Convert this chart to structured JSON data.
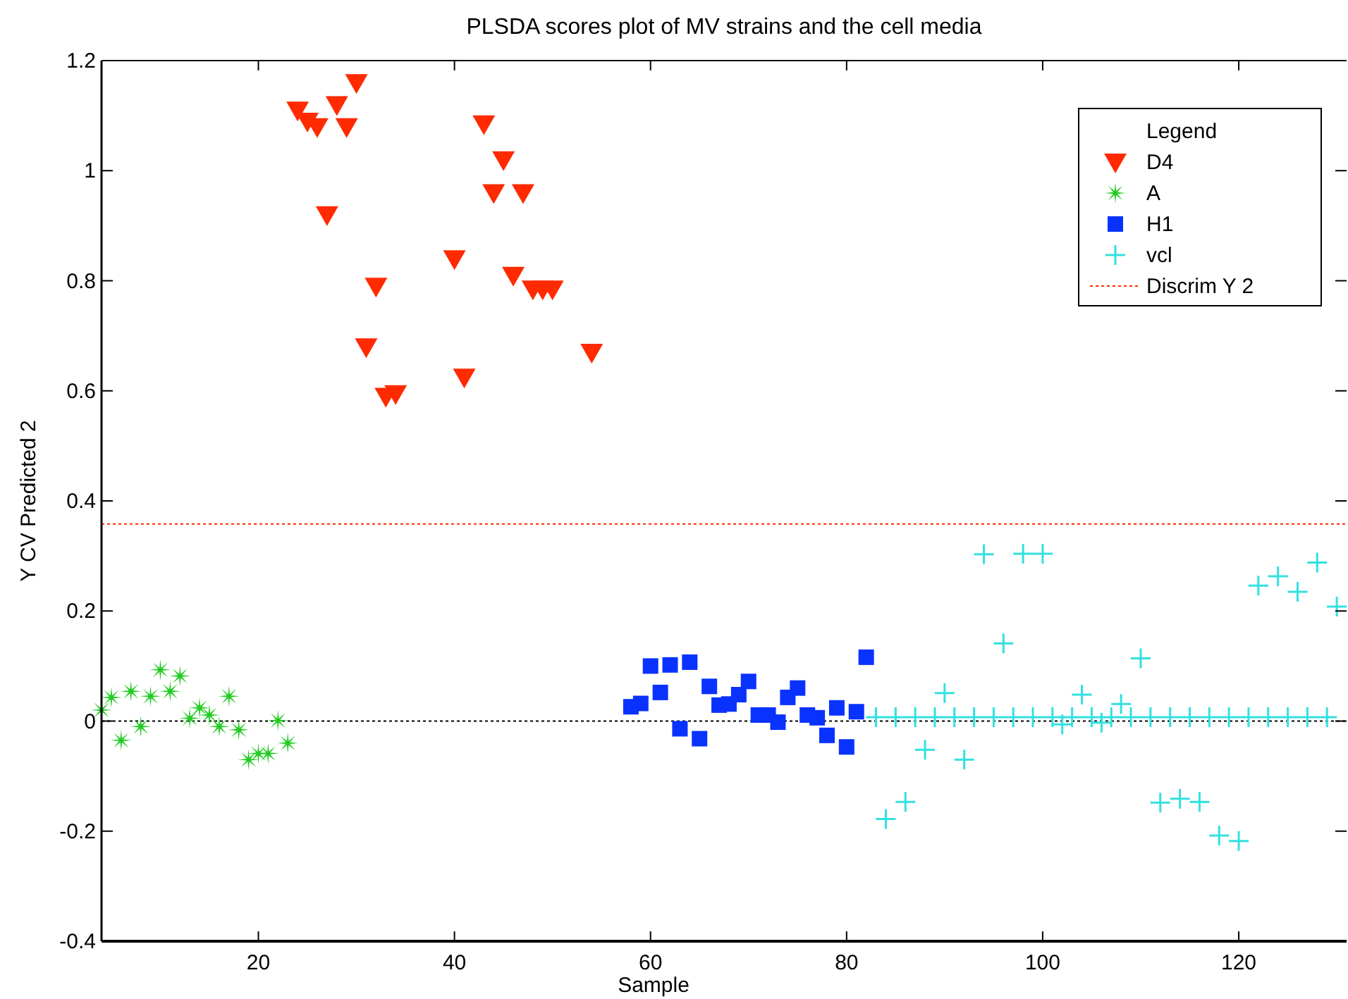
{
  "chart_data": {
    "type": "scatter",
    "title": "PLSDA scores plot of MV strains and the cell media",
    "xlabel": "Sample",
    "ylabel": "Y CV Predicted 2",
    "legend_title": "Legend",
    "legend": "top right",
    "grid": false,
    "xlim": [
      4,
      131
    ],
    "xticks": [
      20,
      40,
      60,
      80,
      100,
      120
    ],
    "ylim": [
      -0.4,
      1.2
    ],
    "yticks": [
      -0.4,
      -0.2,
      0,
      0.2,
      0.4,
      0.6,
      0.8,
      1,
      1.2
    ],
    "series": [
      {
        "name": "D4",
        "color": "#ff2a00",
        "marker": "triangle",
        "x": [
          24,
          25,
          26,
          27,
          28,
          29,
          30,
          31,
          32,
          33,
          34,
          40,
          41,
          43,
          44,
          45,
          46,
          47,
          48,
          49,
          50,
          54
        ],
        "values": [
          1.11,
          1.09,
          1.08,
          0.92,
          1.12,
          1.08,
          1.16,
          0.68,
          0.79,
          0.59,
          0.595,
          0.84,
          0.625,
          1.085,
          0.96,
          1.02,
          0.81,
          0.96,
          0.785,
          0.785,
          0.785,
          0.67
        ]
      },
      {
        "name": "A",
        "color": "#22cc22",
        "marker": "star",
        "x": [
          4,
          5,
          6,
          7,
          8,
          9,
          10,
          11,
          12,
          13,
          14,
          15,
          16,
          17,
          18,
          19,
          20,
          21,
          22,
          23
        ],
        "values": [
          0.02,
          0.043,
          -0.035,
          0.054,
          -0.01,
          0.045,
          0.093,
          0.054,
          0.082,
          0.005,
          0.024,
          0.011,
          -0.01,
          0.045,
          -0.016,
          -0.07,
          -0.059,
          -0.059,
          0.001,
          -0.04
        ]
      },
      {
        "name": "H1",
        "color": "#0a32ff",
        "marker": "square",
        "x": [
          58,
          59,
          60,
          61,
          62,
          63,
          64,
          65,
          66,
          67,
          68,
          69,
          70,
          71,
          72,
          73,
          74,
          75,
          76,
          77,
          78,
          79,
          80,
          81,
          82
        ],
        "values": [
          0.026,
          0.032,
          0.1,
          0.052,
          0.102,
          -0.014,
          0.107,
          -0.032,
          0.063,
          0.029,
          0.031,
          0.048,
          0.072,
          0.011,
          0.011,
          -0.002,
          0.043,
          0.06,
          0.011,
          0.006,
          -0.026,
          0.024,
          -0.047,
          0.017,
          0.116
        ]
      },
      {
        "name": "vcl",
        "color": "#33e0e0",
        "marker": "cross",
        "x": [
          83,
          84,
          85,
          86,
          87,
          88,
          89,
          90,
          91,
          92,
          93,
          94,
          95,
          96,
          97,
          98,
          99,
          100,
          101,
          102,
          103,
          104,
          105,
          106,
          107,
          108,
          109,
          110,
          111,
          112,
          113,
          114,
          115,
          116,
          117,
          118,
          119,
          120,
          121,
          122,
          123,
          124,
          125,
          126,
          127,
          128,
          129,
          130
        ],
        "values": [
          0.007,
          -0.178,
          0.007,
          -0.147,
          0.007,
          -0.052,
          0.007,
          0.051,
          0.007,
          -0.07,
          0.007,
          0.303,
          0.007,
          0.141,
          0.007,
          0.304,
          0.007,
          0.304,
          0.007,
          -0.006,
          0.007,
          0.048,
          0.007,
          -0.003,
          0.007,
          0.031,
          0.007,
          0.114,
          0.007,
          -0.148,
          0.007,
          -0.141,
          0.007,
          -0.147,
          0.007,
          -0.208,
          0.007,
          -0.218,
          0.007,
          0.246,
          0.007,
          0.263,
          0.007,
          0.235,
          0.007,
          0.288,
          0.007,
          0.208
        ]
      }
    ],
    "ref_lines": [
      {
        "axis": "y",
        "value": 0,
        "color": "#000000",
        "line_style": "dotted"
      },
      {
        "axis": "y",
        "value": 0.358,
        "label": "Discrim Y 2",
        "color": "#ff2a00",
        "line_style": "dotted"
      }
    ]
  }
}
